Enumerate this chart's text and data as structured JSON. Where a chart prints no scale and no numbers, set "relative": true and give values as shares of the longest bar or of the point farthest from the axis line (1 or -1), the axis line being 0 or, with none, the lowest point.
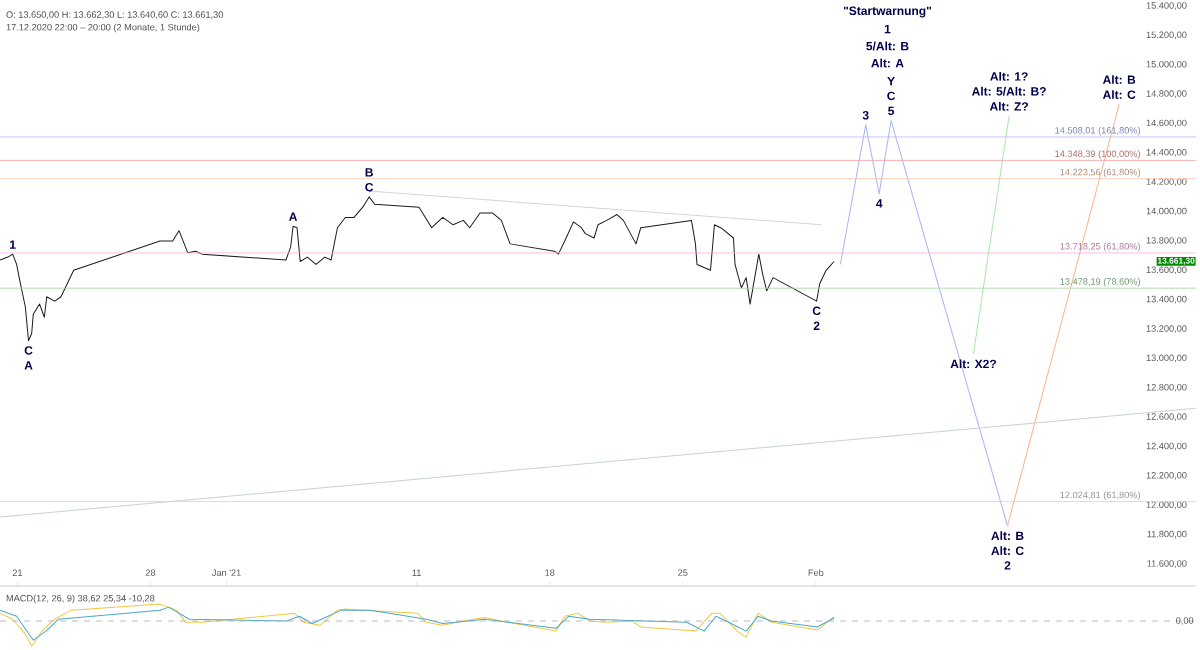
{
  "chart_data": [
    {
      "type": "line",
      "title": "O: 13.650,00 H: 13.662,30 L: 13.640,60 C: 13.661,30",
      "subtitle": "17.12.2020 22:00 – 20:00 (2 Monate, 1 Stunde)",
      "xlim": [
        "2020-12-20T02:00",
        "2021-02-21T00:00"
      ],
      "xticks": [
        {
          "value": "2020-12-21",
          "label": "21"
        },
        {
          "value": "2020-12-28",
          "label": "28"
        },
        {
          "value": "2021-01-01",
          "label": "Jan '21"
        },
        {
          "value": "2021-01-11",
          "label": "11"
        },
        {
          "value": "2021-01-18",
          "label": "18"
        },
        {
          "value": "2021-01-25",
          "label": "25"
        },
        {
          "value": "2021-02-01",
          "label": "Feb"
        }
      ],
      "ylim": [
        11450,
        15400
      ],
      "yticks": [
        {
          "value": 11600,
          "label": "11.600,00"
        },
        {
          "value": 11800,
          "label": "11.800,00"
        },
        {
          "value": 12000,
          "label": "12.000,00"
        },
        {
          "value": 12200,
          "label": "12.200,00"
        },
        {
          "value": 12400,
          "label": "12.400,00"
        },
        {
          "value": 12600,
          "label": "12.600,00"
        },
        {
          "value": 12800,
          "label": "12.800,00"
        },
        {
          "value": 13000,
          "label": "13.000,00"
        },
        {
          "value": 13200,
          "label": "13.200,00"
        },
        {
          "value": 13400,
          "label": "13.400,00"
        },
        {
          "value": 13600,
          "label": "13.600,00"
        },
        {
          "value": 13800,
          "label": "13.800,00"
        },
        {
          "value": 14000,
          "label": "14.000,00"
        },
        {
          "value": 14200,
          "label": "14.200,00"
        },
        {
          "value": 14400,
          "label": "14.400,00"
        },
        {
          "value": 14600,
          "label": "14.600,00"
        },
        {
          "value": 14800,
          "label": "14.800,00"
        },
        {
          "value": 15000,
          "label": "15.000,00"
        },
        {
          "value": 15200,
          "label": "15.200,00"
        },
        {
          "value": 15400,
          "label": "15.400,00"
        }
      ],
      "series": [
        {
          "color": "#1a1a1a",
          "x": [
            "2020-12-20T02:00",
            "2020-12-20T12:00",
            "2020-12-20T18:00",
            "2020-12-20T23:00",
            "2020-12-21T03:00",
            "2020-12-21T10:00",
            "2020-12-21T14:00",
            "2020-12-21T18:00",
            "2020-12-21T20:00",
            "2020-12-22T04:00",
            "2020-12-22T10:00",
            "2020-12-22T13:00",
            "2020-12-22T23:00",
            "2020-12-23T07:00",
            "2020-12-23T15:00",
            "2020-12-23T23:00",
            "2020-12-28T12:00",
            "2020-12-29T04:00",
            "2020-12-29T12:00",
            "2020-12-29T23:00",
            "2020-12-30T09:00",
            "2020-12-30T17:00",
            "2021-01-04T03:00",
            "2021-01-04T09:00",
            "2021-01-04T12:00",
            "2021-01-04T17:00",
            "2021-01-04T21:00",
            "2021-01-05T06:00",
            "2021-01-05T17:00",
            "2021-01-06T04:00",
            "2021-01-06T12:00",
            "2021-01-06T20:00",
            "2021-01-07T06:00",
            "2021-01-07T17:00",
            "2021-01-08T04:00",
            "2021-01-08T12:00",
            "2021-01-08T19:00",
            "2021-01-11T03:00",
            "2021-01-11T19:00",
            "2021-01-12T09:00",
            "2021-01-12T22:00",
            "2021-01-13T11:00",
            "2021-01-13T19:00",
            "2021-01-14T08:00",
            "2021-01-15T00:00",
            "2021-01-15T11:00",
            "2021-01-15T22:00",
            "2021-01-18T06:00",
            "2021-01-18T11:00",
            "2021-01-18T19:00",
            "2021-01-19T06:00",
            "2021-01-19T16:00",
            "2021-01-19T21:00",
            "2021-01-20T08:00",
            "2021-01-20T13:00",
            "2021-01-21T00:00",
            "2021-01-21T13:00",
            "2021-01-21T21:00",
            "2021-01-22T13:00",
            "2021-01-22T19:00",
            "2021-01-25T11:00",
            "2021-01-25T16:00",
            "2021-01-25T18:00",
            "2021-01-26T11:00",
            "2021-01-26T16:00",
            "2021-01-27T00:00",
            "2021-01-27T16:00",
            "2021-01-27T18:00",
            "2021-01-28T02:00",
            "2021-01-28T08:00",
            "2021-01-28T13:00",
            "2021-01-29T00:00",
            "2021-01-29T05:00",
            "2021-01-29T10:00",
            "2021-01-29T18:00",
            "2021-02-01T01:00",
            "2021-02-01T05:00",
            "2021-02-01T13:00",
            "2021-02-01T23:00"
          ],
          "values": [
            13670,
            13690,
            13710,
            13640,
            13530,
            13350,
            13120,
            13170,
            13300,
            13370,
            13280,
            13420,
            13390,
            13420,
            13510,
            13600,
            13800,
            13800,
            13870,
            13720,
            13730,
            13710,
            13670,
            13760,
            13900,
            13890,
            13660,
            13690,
            13640,
            13690,
            13670,
            13890,
            13960,
            13960,
            14030,
            14100,
            14050,
            14030,
            13890,
            13960,
            13910,
            13940,
            13890,
            13990,
            13990,
            13940,
            13780,
            13730,
            13710,
            13800,
            13930,
            13890,
            13850,
            13820,
            13910,
            13940,
            13980,
            13940,
            13780,
            13890,
            13940,
            13780,
            13640,
            13600,
            13910,
            13890,
            13820,
            13640,
            13480,
            13550,
            13370,
            13710,
            13570,
            13460,
            13550,
            13390,
            13510,
            13600,
            13660
          ]
        },
        {
          "color": "#a8b4f5",
          "x": [
            "2021-02-02T07:00",
            "2021-02-03T15:00",
            "2021-02-04T08:00",
            "2021-02-04T23:00",
            "2021-02-11T02:00"
          ],
          "values": [
            13640,
            14590,
            14120,
            14620,
            11860
          ]
        },
        {
          "color": "#a8e6a8",
          "x": [
            "2021-02-09T07:00",
            "2021-02-11T04:00"
          ],
          "values": [
            13030,
            14650
          ]
        },
        {
          "color": "#f7b48c",
          "x": [
            "2021-02-11T02:00",
            "2021-02-16T23:00"
          ],
          "values": [
            11860,
            14730
          ]
        },
        {
          "color": "#c8d4cc",
          "x": [
            "2020-12-20T02:00",
            "2021-02-21T00:00"
          ],
          "values": [
            11920,
            12660
          ]
        },
        {
          "color": "#d4d4d4",
          "x": [
            "2021-01-08T12:00",
            "2021-02-01T07:00"
          ],
          "values": [
            14140,
            13910
          ]
        }
      ],
      "ref_lines": [
        {
          "axis": "y",
          "value": 14223.56,
          "label": "14.223,56 (61,80%)",
          "color": "#f7c4a8"
        },
        {
          "axis": "y",
          "value": 13718.25,
          "label": "13.718,25 (61,80%)",
          "color": "#f5b0e0"
        },
        {
          "axis": "y",
          "value": 14508.01,
          "label": "14.508,01 (161,80%)",
          "color": "#b0b8f5"
        },
        {
          "axis": "y",
          "value": 14348.39,
          "label": "14.348,39 (100,00%)",
          "color": "#f5a0a0"
        },
        {
          "axis": "y",
          "value": 13478.19,
          "label": "13.478,19 (78,60%)",
          "color": "#a0d8a0"
        },
        {
          "axis": "y",
          "value": 12024.81,
          "label": "12.024,81 (61,80%)",
          "color": "#d0d0d0"
        }
      ],
      "annotations": [
        {
          "text": "13.661,30",
          "y": 13661.3
        },
        "\"Startwarnung\"",
        {
          "text": "1",
          "x": "2020-12-20T18:00",
          "y": 13710
        },
        {
          "text": "C",
          "x": "2020-12-21T14:00",
          "y": 13120
        },
        {
          "text": "A",
          "x": "2020-12-21T14:00",
          "y": 13120
        },
        {
          "text": "A",
          "x": "2021-01-04T12:00",
          "y": 13900
        },
        {
          "text": "B",
          "x": "2021-01-08T12:00",
          "y": 14100
        },
        {
          "text": "C",
          "x": "2021-01-08T12:00",
          "y": 14100
        },
        {
          "text": "C",
          "x": "2021-02-01T01:00",
          "y": 13390
        },
        {
          "text": "2",
          "x": "2021-02-01T01:00",
          "y": 13390
        },
        "1",
        "5/Alt: B",
        "Alt: A",
        {
          "text": "Y",
          "x": "2021-02-04T23:00",
          "y": 14620
        },
        {
          "text": "C",
          "x": "2021-02-04T23:00",
          "y": 14620
        },
        {
          "text": "5",
          "x": "2021-02-04T23:00",
          "y": 14620
        },
        {
          "text": "3",
          "x": "2021-02-03T15:00",
          "y": 14590
        },
        {
          "text": "4",
          "x": "2021-02-04T08:00",
          "y": 14120
        },
        {
          "text": "Alt: 1?",
          "x": "2021-02-11T04:00",
          "y": 14650
        },
        {
          "text": "Alt: 5/Alt: B?",
          "x": "2021-02-11T04:00",
          "y": 14650
        },
        {
          "text": "Alt: Z?",
          "x": "2021-02-11T04:00",
          "y": 14650
        },
        {
          "text": "Alt: B",
          "x": "2021-02-16T23:00",
          "y": 14730
        },
        {
          "text": "Alt: C",
          "x": "2021-02-16T23:00",
          "y": 14730
        },
        {
          "text": "Alt: X2?",
          "x": "2021-02-09T07:00",
          "y": 13030
        },
        {
          "text": "Alt: B",
          "x": "2021-02-11T02:00",
          "y": 11860
        },
        {
          "text": "Alt: C",
          "x": "2021-02-11T02:00",
          "y": 11860
        },
        {
          "text": "2",
          "x": "2021-02-11T02:00",
          "y": 11860
        }
      ]
    },
    {
      "type": "line",
      "relative": true,
      "tick_labels": false,
      "title": "MACD(12, 26, 9) 38,62 25,34 -10,28",
      "xlim": [
        "2020-12-20T02:00",
        "2021-02-21T00:00"
      ],
      "series": [
        {
          "color": "#f2c744",
          "x": [
            "2020-12-20T02:00",
            "2020-12-20T18:00",
            "2020-12-21T10:00",
            "2020-12-21T18:00",
            "2020-12-22T07:00",
            "2020-12-22T23:00",
            "2020-12-23T20:00",
            "2020-12-28T12:00",
            "2020-12-29T09:00",
            "2020-12-29T20:00",
            "2020-12-30T17:00",
            "2021-01-04T14:00",
            "2021-01-05T01:00",
            "2021-01-05T22:00",
            "2021-01-06T20:00",
            "2021-01-07T06:00",
            "2021-01-08T04:00",
            "2021-01-11T01:00",
            "2021-01-11T12:00",
            "2021-01-12T09:00",
            "2021-01-13T11:00",
            "2021-01-14T14:00",
            "2021-01-15T11:00",
            "2021-01-18T08:00",
            "2021-01-18T19:00",
            "2021-01-19T11:00",
            "2021-01-20T03:00",
            "2021-01-21T00:00",
            "2021-01-22T08:00",
            "2021-01-22T19:00",
            "2021-01-25T16:00",
            "2021-01-26T13:00",
            "2021-01-26T23:00",
            "2021-01-27T21:00",
            "2021-01-28T08:00",
            "2021-01-28T23:00",
            "2021-01-29T16:00",
            "2021-02-01T02:00",
            "2021-02-01T23:00"
          ],
          "values": [
            0.31,
            0.07,
            -0.52,
            -1,
            -0.4,
            0.07,
            0.43,
            0.67,
            0.43,
            -0.05,
            -0.05,
            0.31,
            -0.05,
            -0.17,
            0.43,
            0.48,
            0.43,
            0.31,
            -0.05,
            -0.17,
            0,
            0.14,
            0,
            -0.4,
            0.19,
            0.31,
            0,
            -0.05,
            0,
            -0.24,
            -0.4,
            0.31,
            0.31,
            -0.4,
            -0.64,
            0.31,
            -0.05,
            -0.36,
            0.16
          ]
        },
        {
          "color": "#4aa8c8",
          "x": [
            "2020-12-20T02:00",
            "2020-12-20T23:00",
            "2020-12-21T20:00",
            "2020-12-22T12:00",
            "2020-12-23T04:00",
            "2020-12-28T12:00",
            "2020-12-28T23:00",
            "2020-12-30T01:00",
            "2021-01-04T04:00",
            "2021-01-04T20:00",
            "2021-01-05T12:00",
            "2021-01-07T01:00",
            "2021-01-08T14:00",
            "2021-01-11T12:00",
            "2021-01-12T09:00",
            "2021-01-14T14:00",
            "2021-01-18T08:00",
            "2021-01-19T00:00",
            "2021-01-20T03:00",
            "2021-01-25T05:00",
            "2021-01-26T03:00",
            "2021-01-26T18:00",
            "2021-01-27T10:00",
            "2021-01-28T08:00",
            "2021-01-28T23:00",
            "2021-01-29T16:00",
            "2021-02-01T02:00",
            "2021-02-01T23:00"
          ],
          "values": [
            0.43,
            0.19,
            -0.76,
            -0.4,
            0.07,
            0.43,
            0.55,
            0.07,
            0,
            0.19,
            -0.1,
            0.43,
            0.43,
            0.07,
            -0.1,
            0.07,
            -0.29,
            0.19,
            0.07,
            -0.05,
            -0.4,
            0.19,
            -0.05,
            -0.4,
            0.19,
            0,
            -0.24,
            0.12
          ]
        }
      ],
      "ref_lines": [
        {
          "axis": "y",
          "value": 0,
          "label": "0,00",
          "color": "#aaaaaa",
          "line_style": "dashed"
        }
      ]
    }
  ]
}
